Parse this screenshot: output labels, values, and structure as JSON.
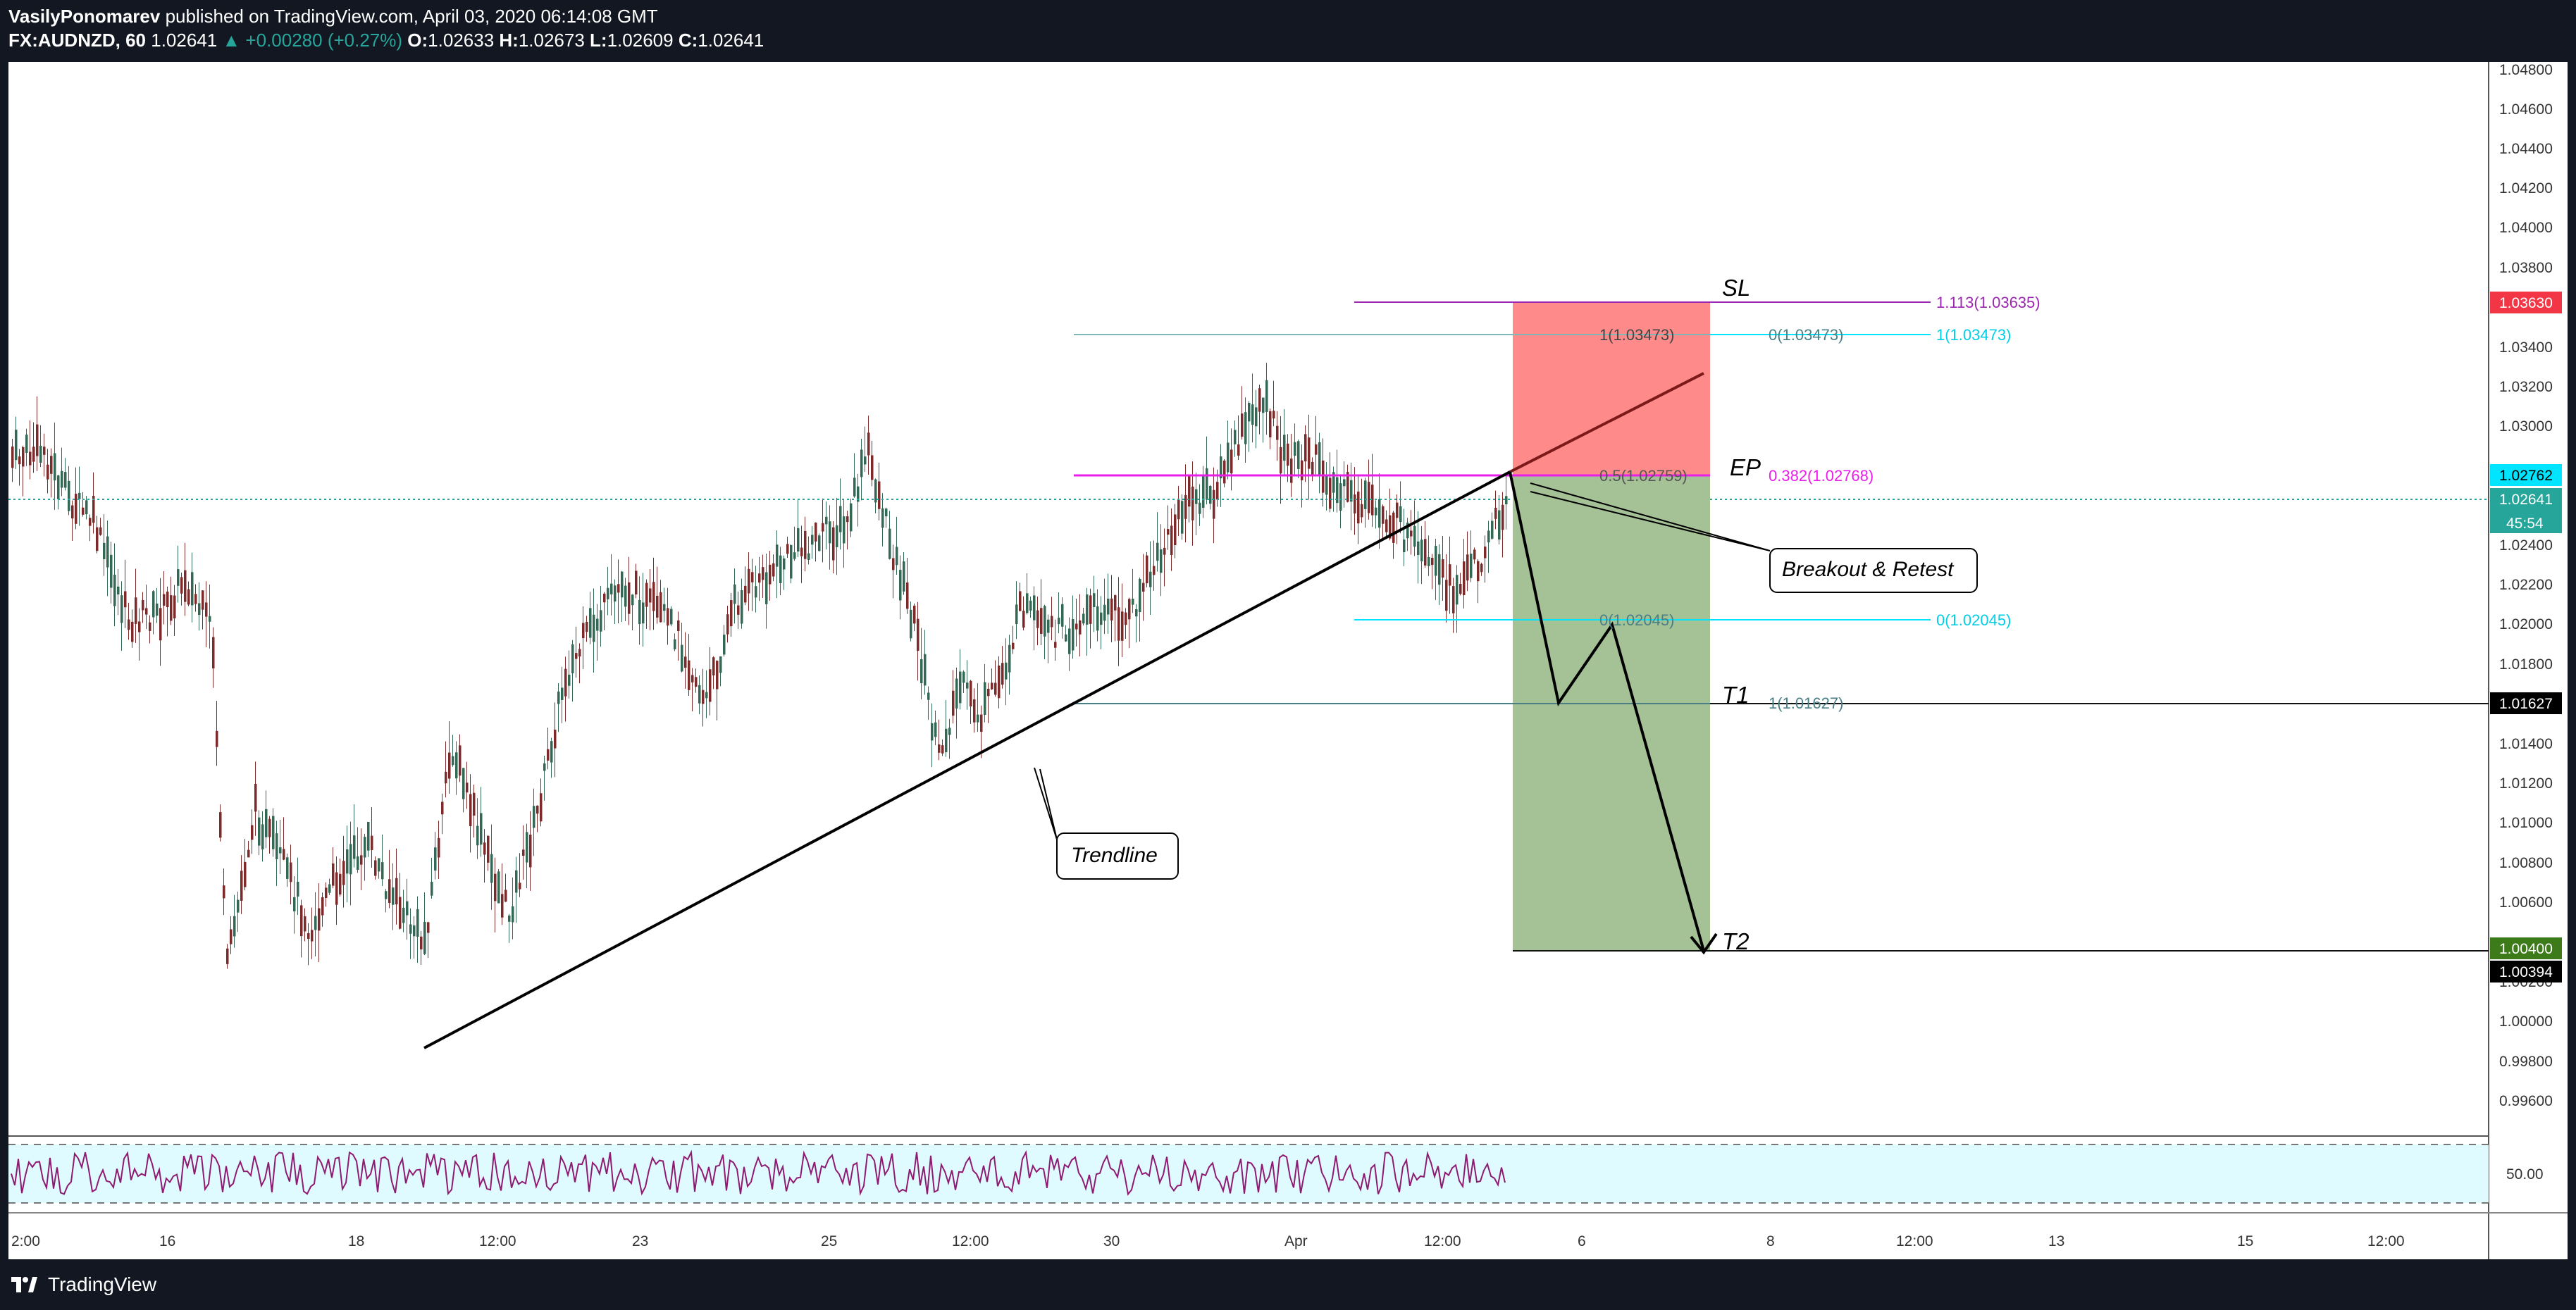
{
  "header": {
    "author": "VasilyPonomarev",
    "published_text": "published on TradingView.com, April 03, 2020 06:14:08 GMT",
    "symbol": "FX:AUDNZD, 60",
    "last": "1.02641",
    "change": "▲ +0.00280 (+0.27%)",
    "o_label": "O:",
    "o": "1.02633",
    "h_label": "H:",
    "h": "1.02673",
    "l_label": "L:",
    "l": "1.02609",
    "c_label": "C:",
    "c": "1.02641"
  },
  "footer": {
    "brand": "TradingView"
  },
  "annotations": {
    "sl": "SL",
    "ep": "EP",
    "t1": "T1",
    "t2": "T2",
    "breakout": "Breakout & Retest",
    "trendline": "Trendline"
  },
  "fib_labels": {
    "f1113": "1.113(1.03635)",
    "f1_left": "1(1.03473)",
    "f0_mid": "0(1.03473)",
    "f1_right": "1(1.03473)",
    "f05": "0.5(1.02759)",
    "f0382": "0.382(1.02768)",
    "f0_left": "0(1.02045)",
    "f0_right": "0(1.02045)",
    "f1_t1": "1(1.01627)"
  },
  "price_axis": {
    "ticks": [
      "1.04800",
      "1.04600",
      "1.04400",
      "1.04200",
      "1.04000",
      "1.03800",
      "1.03400",
      "1.03200",
      "1.03000",
      "1.02400",
      "1.02200",
      "1.02000",
      "1.01800",
      "1.01400",
      "1.01200",
      "1.01000",
      "1.00800",
      "1.00600",
      "1.00200",
      "1.00000",
      "0.99800",
      "0.99600"
    ],
    "tags": {
      "sl": "1.03630",
      "ep": "1.02762",
      "last": "1.02641",
      "countdown": "45:54",
      "t1": "1.01627",
      "t2": "1.00400",
      "t2b": "1.00394"
    }
  },
  "rsi": {
    "level": "50.00"
  },
  "time_axis": [
    "2:00",
    "16",
    "18",
    "12:00",
    "23",
    "25",
    "12:00",
    "30",
    "Apr",
    "12:00",
    "6",
    "8",
    "12:00",
    "13",
    "15",
    "12:00"
  ],
  "colors": {
    "bull": "#336854",
    "bear": "#7c2a2a",
    "stop_zone": "#ff8a8a",
    "target_zone": "#a5c196",
    "fib_cyan": "#00e5ff",
    "fib_magenta": "#e91ee8",
    "fib_purple": "#9c27b0",
    "rsi_line": "#8e1a72",
    "rsi_band": "#e0fbff",
    "tag_red": "#f23645",
    "tag_cyan": "#00e5ff",
    "tag_teal": "#26a69a",
    "tag_green": "#3c7a1a",
    "tag_black": "#000000"
  }
}
